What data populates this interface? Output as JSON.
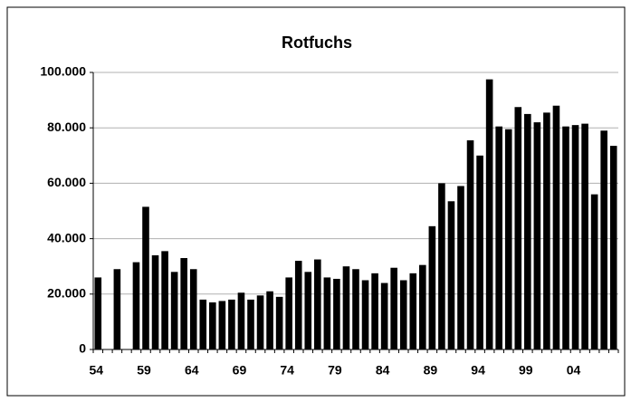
{
  "chart_data": {
    "type": "bar",
    "title": "Rotfuchs",
    "categories": [
      "54",
      null,
      null,
      null,
      null,
      "59",
      null,
      null,
      null,
      null,
      "64",
      null,
      null,
      null,
      null,
      "69",
      null,
      null,
      null,
      null,
      "74",
      null,
      null,
      null,
      null,
      "79",
      null,
      null,
      null,
      null,
      "84",
      null,
      null,
      null,
      null,
      "89",
      null,
      null,
      null,
      null,
      "94",
      null,
      null,
      null,
      null,
      "99",
      null,
      null,
      null,
      null,
      "04",
      null,
      null,
      null,
      null
    ],
    "values": [
      26000,
      null,
      29000,
      null,
      31500,
      51500,
      34000,
      35500,
      28000,
      33000,
      29000,
      18000,
      17000,
      17500,
      18000,
      20500,
      18000,
      19500,
      21000,
      19000,
      26000,
      32000,
      28000,
      32500,
      26000,
      25500,
      30000,
      29000,
      25000,
      27500,
      24000,
      29500,
      25000,
      27500,
      30500,
      44500,
      60000,
      53500,
      59000,
      75500,
      70000,
      97500,
      80500,
      79500,
      87500,
      85000,
      82000,
      85500,
      88000,
      80500,
      81000,
      81500,
      56000,
      79000,
      73500
    ],
    "color": "#000000",
    "ylim": [
      0,
      100000
    ],
    "yticks": [
      0,
      {
        "value": 20000,
        "label": "20.000"
      },
      {
        "value": 40000,
        "label": "40.000"
      },
      {
        "value": 60000,
        "label": "60.000"
      },
      {
        "value": 80000,
        "label": "80.000"
      },
      {
        "value": 100000,
        "label": "100.000"
      }
    ],
    "grid": true
  }
}
